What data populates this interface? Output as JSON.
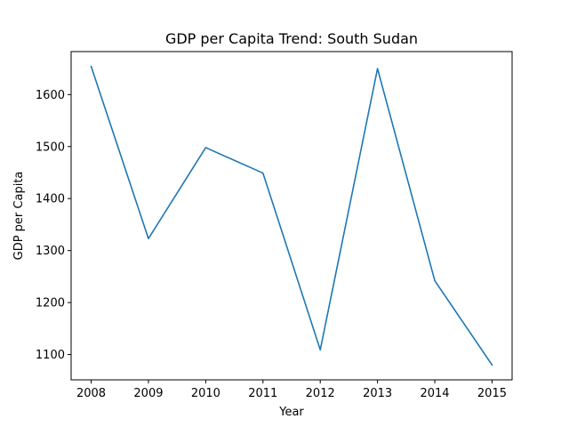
{
  "chart_data": {
    "type": "line",
    "title": "GDP per Capita Trend: South Sudan",
    "xlabel": "Year",
    "ylabel": "GDP per Capita",
    "x": [
      2008,
      2009,
      2010,
      2011,
      2012,
      2013,
      2014,
      2015
    ],
    "series": [
      {
        "values": [
          1654,
          1323,
          1498,
          1449,
          1109,
          1650,
          1242,
          1080
        ],
        "color": "#1f77b4"
      }
    ],
    "xlim": [
      2007.65,
      2015.35
    ],
    "ylim": [
      1051.3,
      1682.7
    ],
    "yticks": [
      1100,
      1200,
      1300,
      1400,
      1500,
      1600
    ],
    "xticks": [
      2008,
      2009,
      2010,
      2011,
      2012,
      2013,
      2014,
      2015
    ],
    "grid": false,
    "legend": "none"
  }
}
